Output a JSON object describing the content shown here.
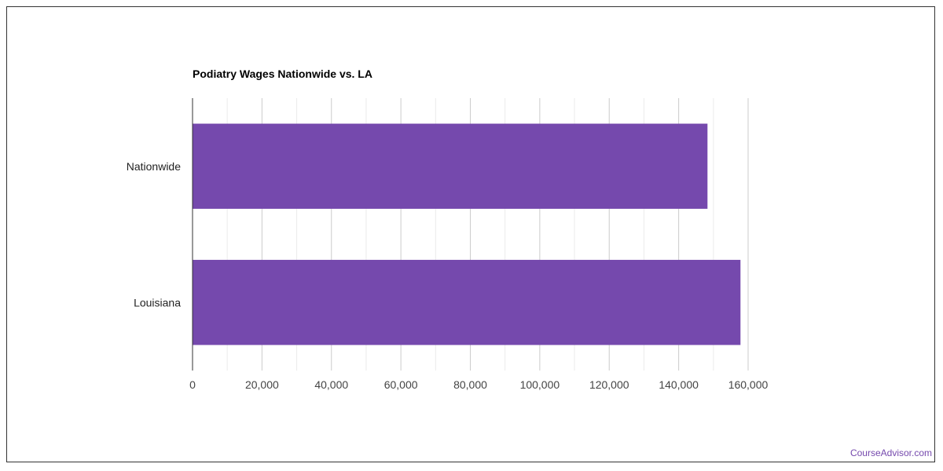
{
  "chart_data": {
    "type": "bar",
    "orientation": "horizontal",
    "title": "Podiatry Wages Nationwide vs. LA",
    "categories": [
      "Nationwide",
      "Louisiana"
    ],
    "values": [
      148300,
      157800
    ],
    "xlim": [
      0,
      160000
    ],
    "xticks": [
      0,
      20000,
      40000,
      60000,
      80000,
      100000,
      120000,
      140000,
      160000
    ],
    "xtick_labels": [
      "0",
      "20,000",
      "40,000",
      "60,000",
      "80,000",
      "100,000",
      "120,000",
      "140,000",
      "160,000"
    ],
    "grid": true,
    "bar_color": "#7549ad"
  },
  "credit": "CourseAdvisor.com"
}
